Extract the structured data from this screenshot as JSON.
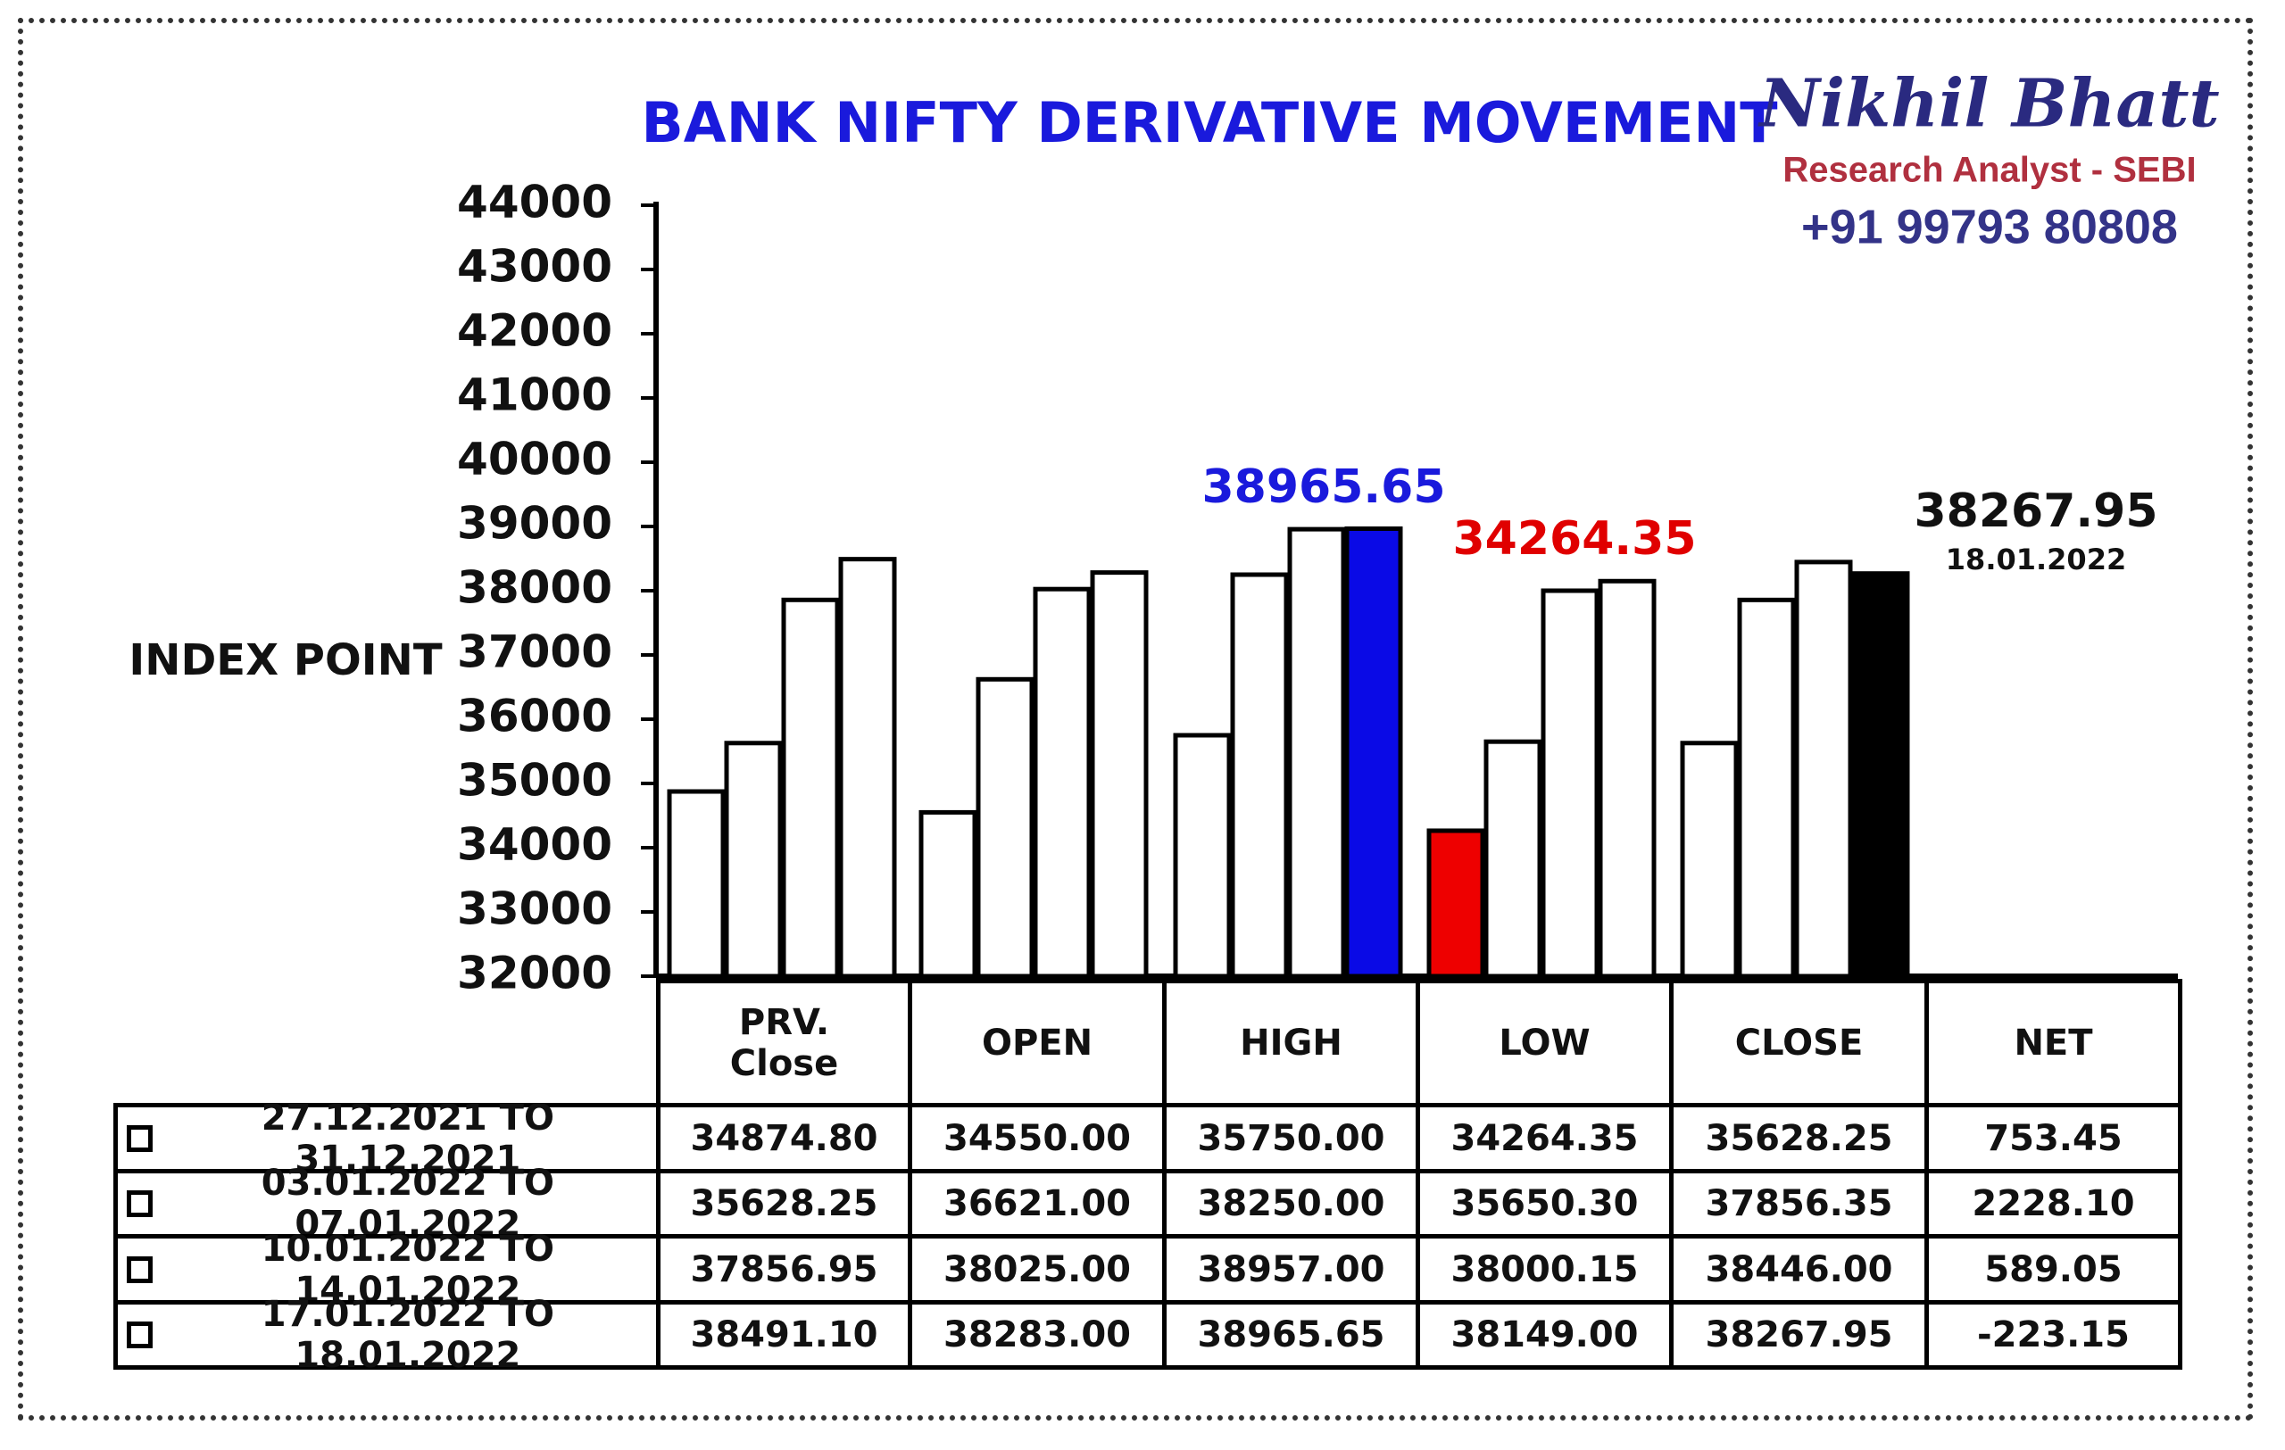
{
  "chart_data": {
    "type": "bar",
    "title": "BANK NIFTY DERIVATIVE MOVEMENT",
    "y_label": "INDEX POINT",
    "categories": [
      "PRV.\nClose",
      "OPEN",
      "HIGH",
      "LOW",
      "CLOSE",
      "NET"
    ],
    "ylim": [
      32000,
      44000
    ],
    "yticks": [
      32000,
      33000,
      34000,
      35000,
      36000,
      37000,
      38000,
      39000,
      40000,
      41000,
      42000,
      43000,
      44000
    ],
    "series": [
      {
        "name": "27.12.2021 TO 31.12.2021",
        "values": [
          34874.8,
          34550,
          35750,
          34264.35,
          35628.25,
          753.45
        ],
        "value_labels": [
          "34874.80",
          "34550.00",
          "35750.00",
          "34264.35",
          "35628.25",
          "753.45"
        ],
        "colors": [
          "#ffffff",
          "#ffffff",
          "#ffffff",
          "#ee0000",
          "#ffffff",
          "#ffffff"
        ]
      },
      {
        "name": "03.01.2022 TO 07.01.2022",
        "values": [
          35628.25,
          36621,
          38250,
          35650.3,
          37856.35,
          2228.1
        ],
        "value_labels": [
          "35628.25",
          "36621.00",
          "38250.00",
          "35650.30",
          "37856.35",
          "2228.10"
        ],
        "colors": [
          "#ffffff",
          "#ffffff",
          "#ffffff",
          "#ffffff",
          "#ffffff",
          "#ffffff"
        ]
      },
      {
        "name": "10.01.2022 TO 14.01.2022",
        "values": [
          37856.95,
          38025,
          38957,
          38000.15,
          38446,
          589.05
        ],
        "value_labels": [
          "37856.95",
          "38025.00",
          "38957.00",
          "38000.15",
          "38446.00",
          "589.05"
        ],
        "colors": [
          "#ffffff",
          "#ffffff",
          "#ffffff",
          "#ffffff",
          "#ffffff",
          "#ffffff"
        ]
      },
      {
        "name": "17.01.2022 TO 18.01.2022",
        "values": [
          38491.1,
          38283,
          38965.65,
          38149,
          38267.95,
          -223.15
        ],
        "value_labels": [
          "38491.10",
          "38283.00",
          "38965.65",
          "38149.00",
          "38267.95",
          "-223.15"
        ],
        "colors": [
          "#ffffff",
          "#ffffff",
          "#0a0ae6",
          "#ffffff",
          "#000000",
          "#ffffff"
        ]
      }
    ],
    "annotations": [
      {
        "text": "38965.65",
        "color": "#1a1adc"
      },
      {
        "text": "34264.35",
        "color": "#e00000"
      },
      {
        "text": "38267.95",
        "color": "#111111"
      },
      {
        "text": "18.01.2022",
        "color": "#111111"
      }
    ]
  },
  "branding": {
    "name": "Nikhil Bhatt",
    "role": "Research Analyst - SEBI",
    "phone": "+91 99793 80808"
  }
}
